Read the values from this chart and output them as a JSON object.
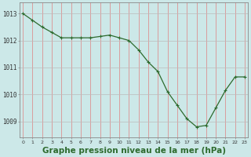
{
  "x": [
    0,
    1,
    2,
    3,
    4,
    5,
    6,
    7,
    8,
    9,
    10,
    11,
    12,
    13,
    14,
    15,
    16,
    17,
    18,
    19,
    20,
    21,
    22,
    23
  ],
  "y": [
    1013.0,
    1012.75,
    1012.5,
    1012.3,
    1012.1,
    1012.1,
    1012.1,
    1012.1,
    1012.15,
    1012.2,
    1012.1,
    1012.0,
    1011.65,
    1011.2,
    1010.85,
    1010.1,
    1009.6,
    1009.1,
    1008.8,
    1008.85,
    1009.5,
    1010.15,
    1010.65,
    1010.65
  ],
  "line_color": "#2d6a2d",
  "marker": "+",
  "marker_size": 4,
  "bg_color": "#cce8e8",
  "grid_color_h": "#bbbbbb",
  "grid_color_v": "#e08080",
  "xlabel": "Graphe pression niveau de la mer (hPa)",
  "xlabel_fontsize": 7.5,
  "xlabel_color": "#2d6a2d",
  "ytick_labels": [
    "1009",
    "1010",
    "1011",
    "1012",
    "1013"
  ],
  "ytick_vals": [
    1009,
    1010,
    1011,
    1012,
    1013
  ],
  "xtick_vals": [
    0,
    1,
    2,
    3,
    4,
    5,
    6,
    7,
    8,
    9,
    10,
    11,
    12,
    13,
    14,
    15,
    16,
    17,
    18,
    19,
    20,
    21,
    22,
    23
  ],
  "ylim": [
    1008.4,
    1013.4
  ],
  "xlim": [
    -0.3,
    23.3
  ]
}
